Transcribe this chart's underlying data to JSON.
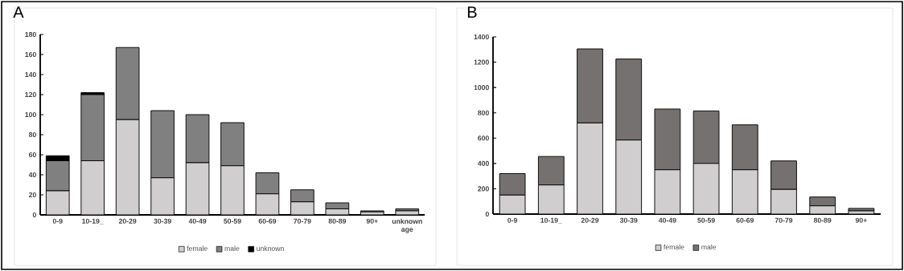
{
  "chart_data": [
    {
      "type": "bar",
      "title": "A",
      "stacked": true,
      "legend": "bottom",
      "categories": [
        "0-9",
        "10-19_",
        "20-29",
        "30-39",
        "40-49",
        "50-59",
        "60-69",
        "70-79",
        "80-89",
        "90+",
        "unknown age"
      ],
      "series": [
        {
          "name": "female",
          "color": "#d0cece",
          "values": [
            24,
            54,
            95,
            37,
            52,
            49,
            21,
            13,
            6,
            3,
            4
          ]
        },
        {
          "name": "male",
          "color": "#808080",
          "values": [
            30,
            66,
            72,
            67,
            48,
            43,
            21,
            12,
            6,
            1,
            2
          ]
        },
        {
          "name": "unknown",
          "color": "#000000",
          "values": [
            5,
            2,
            0,
            0,
            0,
            0,
            0,
            0,
            0,
            0,
            null
          ]
        }
      ],
      "ylim": [
        0,
        180
      ],
      "yticks": [
        0,
        20,
        40,
        60,
        80,
        100,
        120,
        140,
        160,
        180
      ]
    },
    {
      "type": "bar",
      "title": "B",
      "stacked": true,
      "legend": "bottom",
      "categories": [
        "0-9",
        "10-19_",
        "20-29",
        "30-39",
        "40-49",
        "50-59",
        "60-69",
        "70-79",
        "80-89",
        "90+"
      ],
      "series": [
        {
          "name": "female",
          "color": "#d0cece",
          "values": [
            150,
            230,
            720,
            585,
            350,
            400,
            350,
            195,
            65,
            25
          ]
        },
        {
          "name": "male",
          "color": "#767171",
          "values": [
            170,
            225,
            585,
            640,
            480,
            415,
            355,
            225,
            70,
            20
          ]
        }
      ],
      "ylim": [
        0,
        1400
      ],
      "yticks": [
        0,
        200,
        400,
        600,
        800,
        1000,
        1200,
        1400
      ]
    }
  ]
}
